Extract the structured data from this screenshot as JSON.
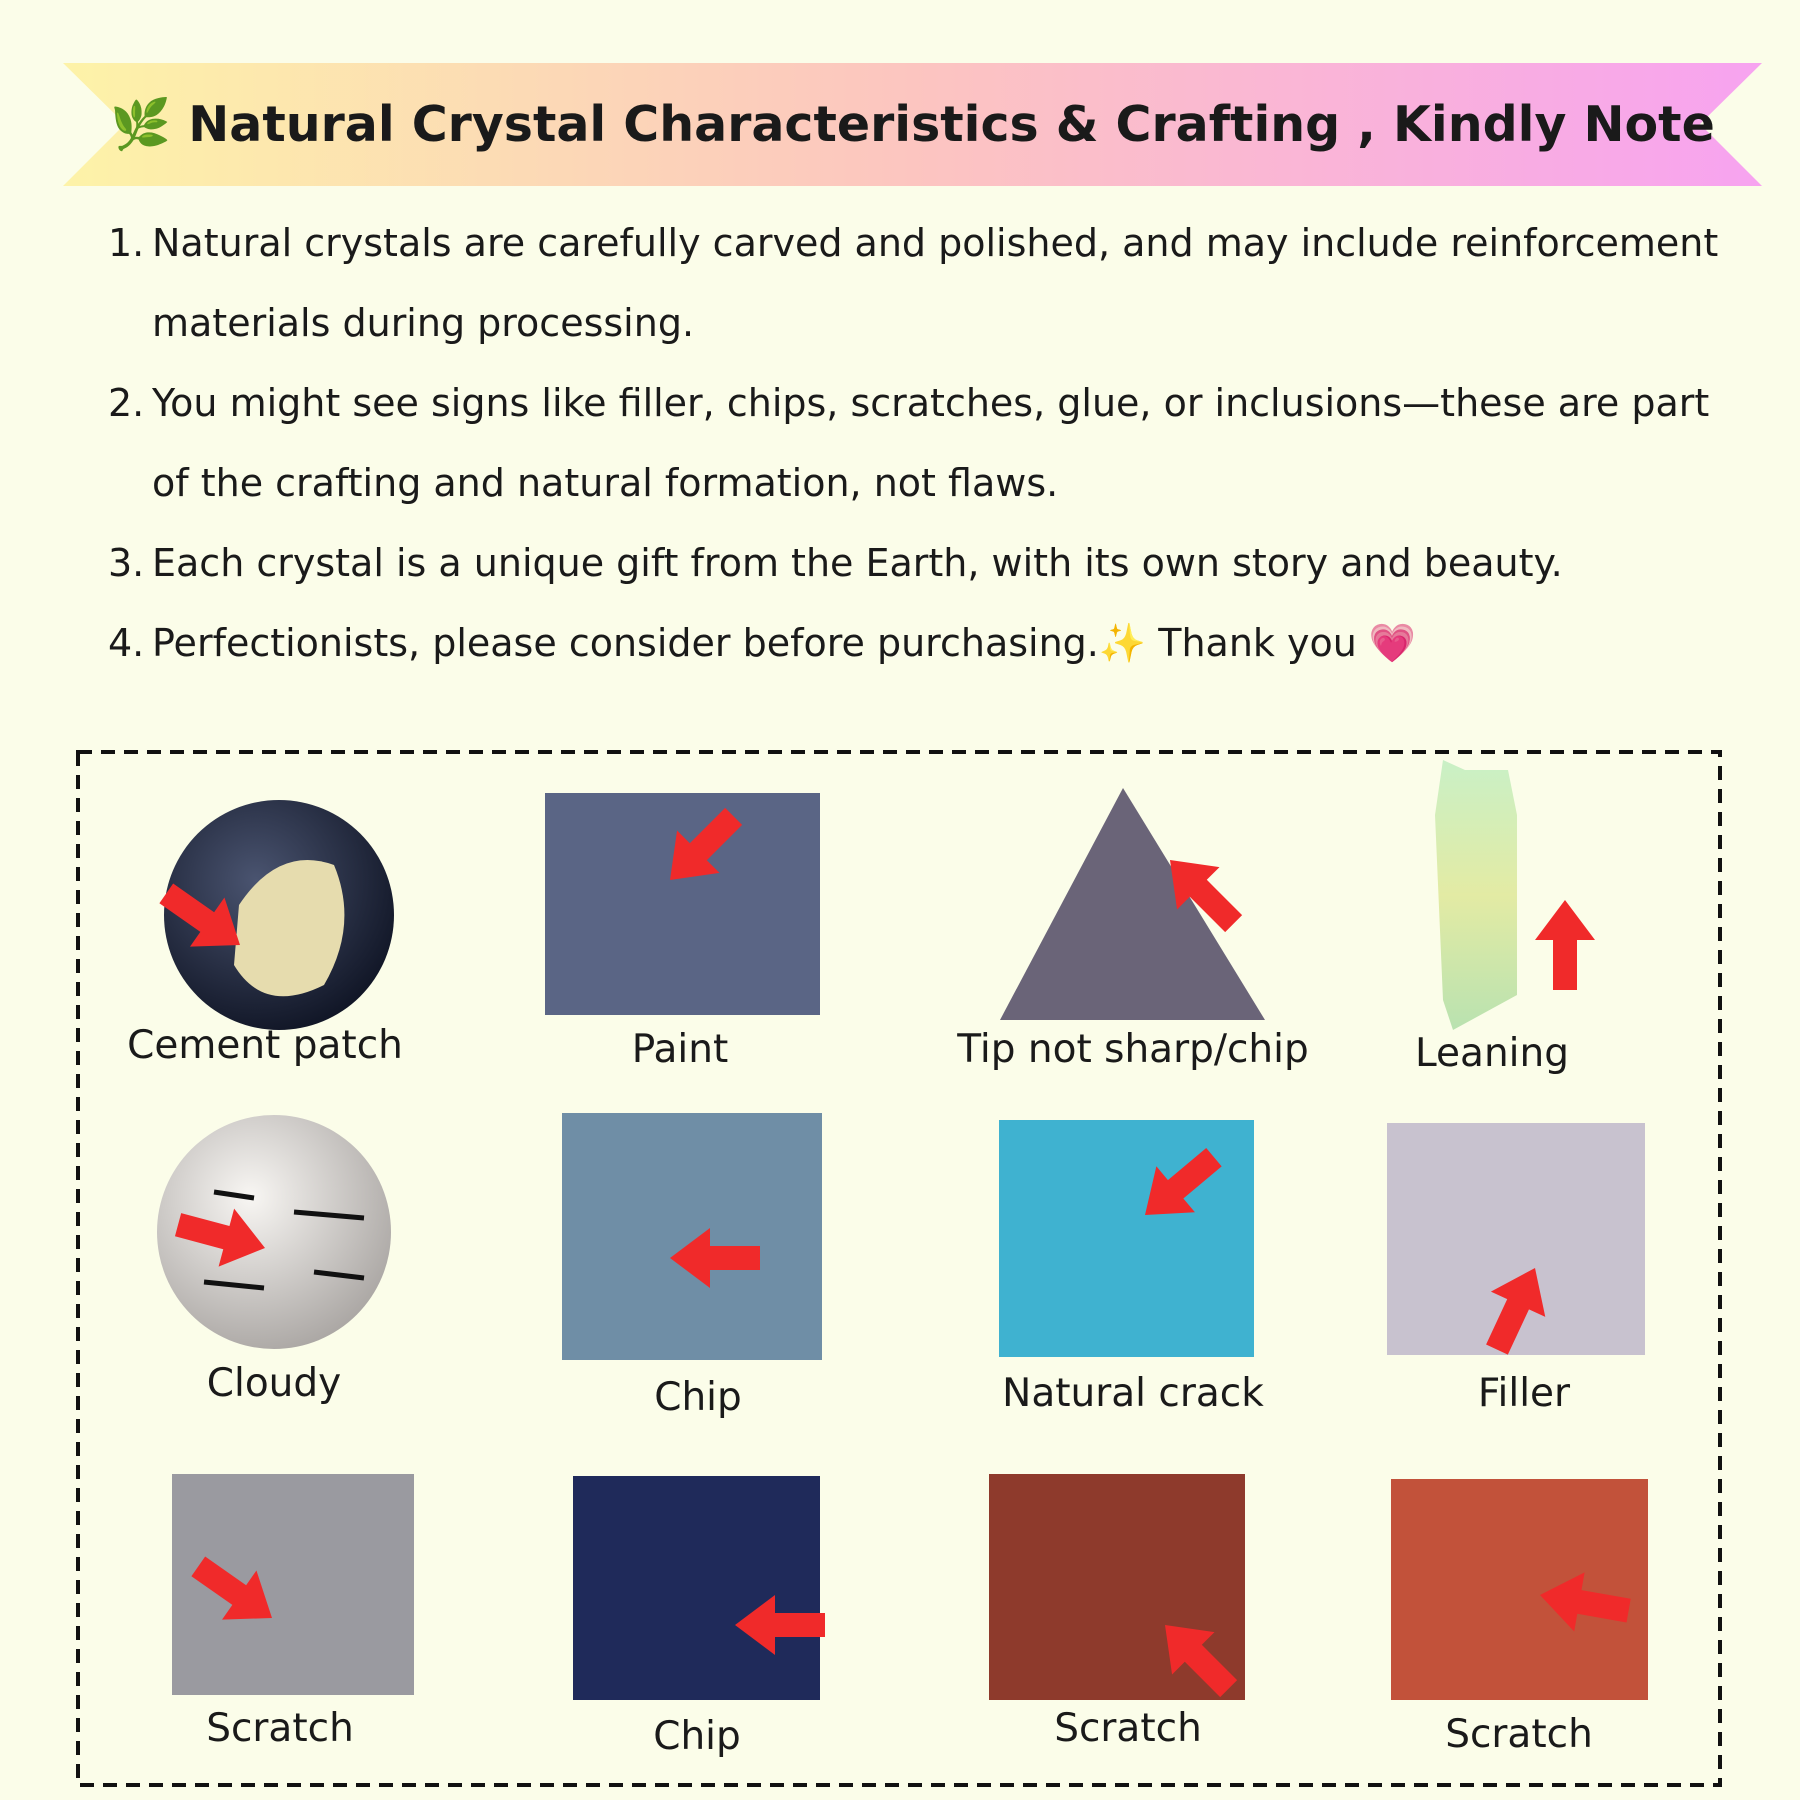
{
  "header": {
    "title": "🌿 Natural Crystal Characteristics & Crafting , Kindly Note"
  },
  "notes": [
    {
      "number": "1.",
      "text": "Natural crystals are carefully carved and polished, and may include reinforcement materials during processing."
    },
    {
      "number": "2.",
      "text": "You might see signs like filler, chips, scratches, glue, or inclusions—these are part of the crafting and natural formation, not flaws."
    },
    {
      "number": "3.",
      "text": "Each crystal is a unique gift from the Earth, with its own story and beauty."
    },
    {
      "number": "4.",
      "text": "Perfectionists, please consider before purchasing.✨  Thank you 💗"
    }
  ],
  "samples": [
    {
      "label": "Cement patch"
    },
    {
      "label": "Paint"
    },
    {
      "label": "Tip not sharp/chip"
    },
    {
      "label": "Leaning"
    },
    {
      "label": "Cloudy"
    },
    {
      "label": "Chip"
    },
    {
      "label": "Natural crack"
    },
    {
      "label": "Filler"
    },
    {
      "label": "Scratch"
    },
    {
      "label": "Chip"
    },
    {
      "label": "Scratch"
    },
    {
      "label": "Scratch"
    }
  ]
}
